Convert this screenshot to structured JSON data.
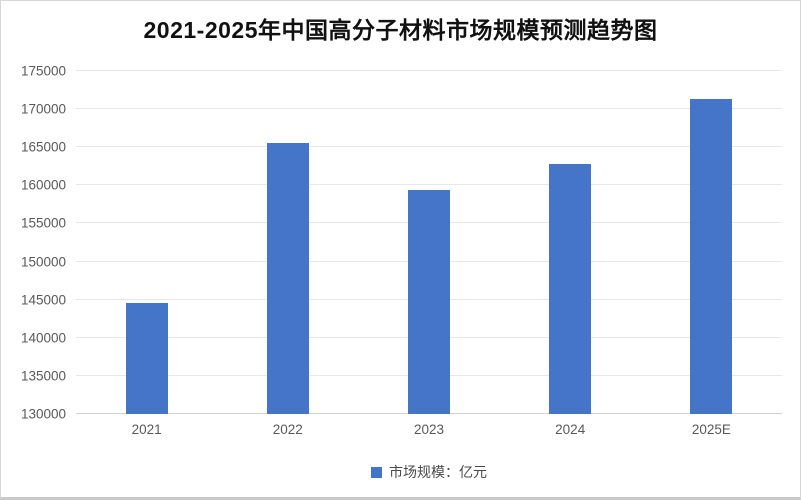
{
  "chart_data": {
    "type": "bar",
    "title": "2021-2025年中国高分子材料市场规模预测趋势图",
    "categories": [
      "2021",
      "2022",
      "2023",
      "2024",
      "2025E"
    ],
    "values": [
      144500,
      165600,
      159400,
      162800,
      171300
    ],
    "legend": "市场规模：亿元",
    "xlabel": "",
    "ylabel": "",
    "ylim": [
      130000,
      175000
    ],
    "ytick_step": 5000,
    "ytick_labels": [
      "130000",
      "135000",
      "140000",
      "145000",
      "150000",
      "155000",
      "160000",
      "165000",
      "170000",
      "175000"
    ],
    "grid": true,
    "legend_position": "bottom-center",
    "bar_color": "#4575C9"
  },
  "colors": {
    "bar": "#4575C9",
    "grid_line": "#e8e8e8",
    "axis_line": "#d2d2d2",
    "tick_text": "#595959",
    "title_text": "#111111",
    "frame_border": "#d6d6d6",
    "background": "#ffffff"
  }
}
